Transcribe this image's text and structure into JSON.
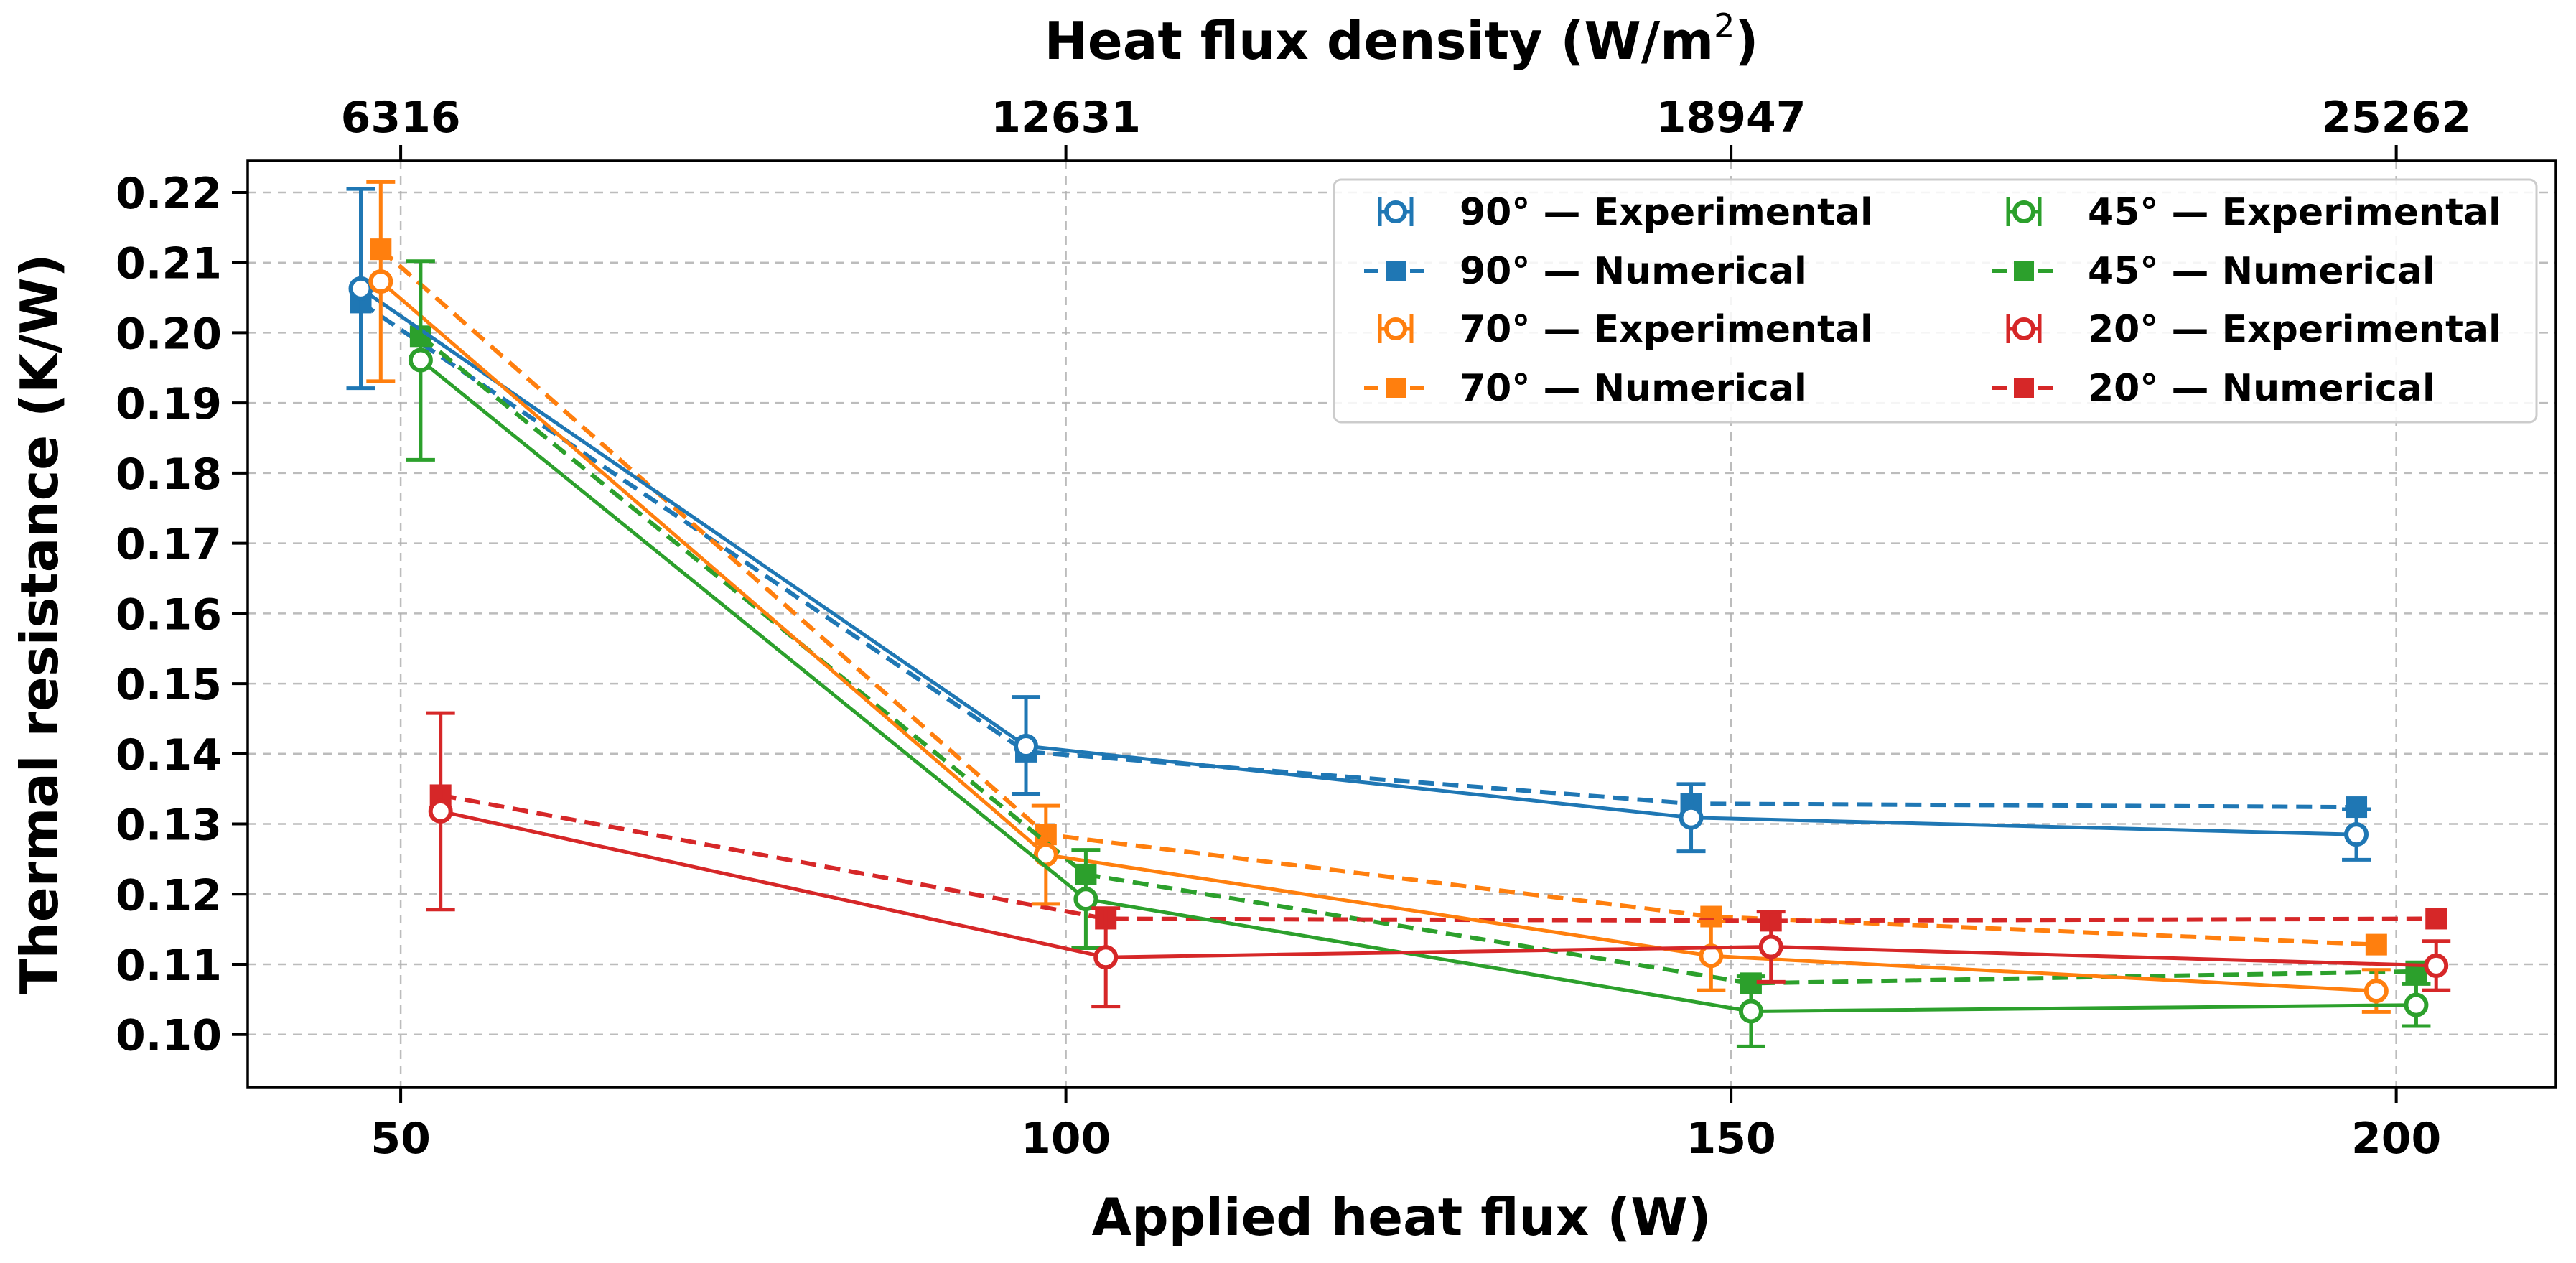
{
  "chart_data": {
    "type": "line",
    "title": "",
    "xlabel": "Applied heat flux (W)",
    "ylabel": "Thermal resistance (K/W)",
    "top_xlabel": "Heat flux density (W/m",
    "top_xlabel_sup": "2",
    "top_xlabel_end": ")",
    "xlim": [
      38.5,
      212
    ],
    "ylim": [
      0.0925,
      0.2245
    ],
    "x_ticks": [
      50,
      100,
      150,
      200
    ],
    "x_tick_labels": [
      "50",
      "100",
      "150",
      "200"
    ],
    "y_ticks": [
      0.1,
      0.11,
      0.12,
      0.13,
      0.14,
      0.15,
      0.16,
      0.17,
      0.18,
      0.19,
      0.2,
      0.21,
      0.22
    ],
    "y_tick_labels": [
      "0.10",
      "0.11",
      "0.12",
      "0.13",
      "0.14",
      "0.15",
      "0.16",
      "0.17",
      "0.18",
      "0.19",
      "0.20",
      "0.21",
      "0.22"
    ],
    "top_ticks": [
      50,
      100,
      150,
      200
    ],
    "top_tick_labels": [
      "6316",
      "12631",
      "18947",
      "25262"
    ],
    "grid": true,
    "legend_position": "top-right",
    "series": [
      {
        "name": "90° — Experimental",
        "kind": "experimental",
        "color": "#1f77b4",
        "x": [
          47,
          97,
          147,
          197
        ],
        "y": [
          0.2063,
          0.1411,
          0.1309,
          0.1285
        ],
        "err_low": [
          0.1921,
          0.1343,
          0.1261,
          0.1249
        ],
        "err_high": [
          0.2205,
          0.1481,
          0.1357,
          0.1321
        ]
      },
      {
        "name": "90° — Numerical",
        "kind": "numerical",
        "color": "#1f77b4",
        "x": [
          47,
          97,
          147,
          197
        ],
        "y": [
          0.2043,
          0.1403,
          0.1329,
          0.1324
        ]
      },
      {
        "name": "70° — Experimental",
        "kind": "experimental",
        "color": "#ff7f0e",
        "x": [
          48.5,
          98.5,
          148.5,
          198.5
        ],
        "y": [
          0.2073,
          0.1256,
          0.1112,
          0.1062
        ],
        "err_low": [
          0.1931,
          0.1186,
          0.1063,
          0.1032
        ],
        "err_high": [
          0.2215,
          0.1326,
          0.1161,
          0.1092
        ]
      },
      {
        "name": "70° — Numerical",
        "kind": "numerical",
        "color": "#ff7f0e",
        "x": [
          48.5,
          98.5,
          148.5,
          198.5
        ],
        "y": [
          0.2119,
          0.1285,
          0.1168,
          0.1128
        ]
      },
      {
        "name": "45° — Experimental",
        "kind": "experimental",
        "color": "#2ca02c",
        "x": [
          51.5,
          101.5,
          151.5,
          201.5
        ],
        "y": [
          0.1961,
          0.1193,
          0.1033,
          0.1042
        ],
        "err_low": [
          0.1819,
          0.1123,
          0.0983,
          0.1012
        ],
        "err_high": [
          0.2102,
          0.1263,
          0.1083,
          0.1072
        ]
      },
      {
        "name": "45° — Numerical",
        "kind": "numerical",
        "color": "#2ca02c",
        "x": [
          51.5,
          101.5,
          151.5,
          201.5
        ],
        "y": [
          0.1995,
          0.1228,
          0.1073,
          0.109
        ]
      },
      {
        "name": "20° — Experimental",
        "kind": "experimental",
        "color": "#d62728",
        "x": [
          53,
          103,
          153,
          203
        ],
        "y": [
          0.1318,
          0.111,
          0.1125,
          0.1098
        ],
        "err_low": [
          0.1178,
          0.104,
          0.1075,
          0.1063
        ],
        "err_high": [
          0.1458,
          0.118,
          0.1175,
          0.1133
        ]
      },
      {
        "name": "20° — Numerical",
        "kind": "numerical",
        "color": "#d62728",
        "x": [
          53,
          103,
          153,
          203
        ],
        "y": [
          0.1341,
          0.1165,
          0.1162,
          0.1165
        ]
      }
    ]
  },
  "legend": {
    "items": [
      {
        "label": "90° — Experimental",
        "kind": "experimental",
        "color": "#1f77b4"
      },
      {
        "label": "90° — Numerical",
        "kind": "numerical",
        "color": "#1f77b4"
      },
      {
        "label": "70° — Experimental",
        "kind": "experimental",
        "color": "#ff7f0e"
      },
      {
        "label": "70° — Numerical",
        "kind": "numerical",
        "color": "#ff7f0e"
      },
      {
        "label": "45° — Experimental",
        "kind": "experimental",
        "color": "#2ca02c"
      },
      {
        "label": "45° — Numerical",
        "kind": "numerical",
        "color": "#2ca02c"
      },
      {
        "label": "20° — Experimental",
        "kind": "experimental",
        "color": "#d62728"
      },
      {
        "label": "20° — Numerical",
        "kind": "numerical",
        "color": "#d62728"
      }
    ]
  }
}
